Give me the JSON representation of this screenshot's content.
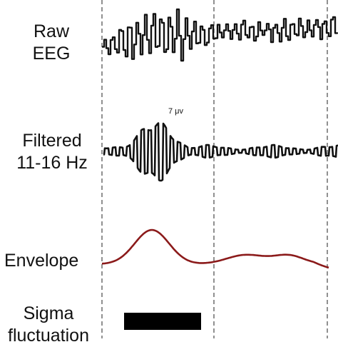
{
  "labels": {
    "raw": [
      "Raw",
      "EEG"
    ],
    "filtered": [
      "Filtered",
      "11-16 Hz"
    ],
    "envelope": "Envelope",
    "sigma": [
      "Sigma",
      "fluctuation"
    ]
  },
  "scale_bar": "7 μv",
  "colors": {
    "trace": "#111111",
    "envelope": "#8b1a1a",
    "divider": "#555555",
    "bar": "#000000"
  }
}
